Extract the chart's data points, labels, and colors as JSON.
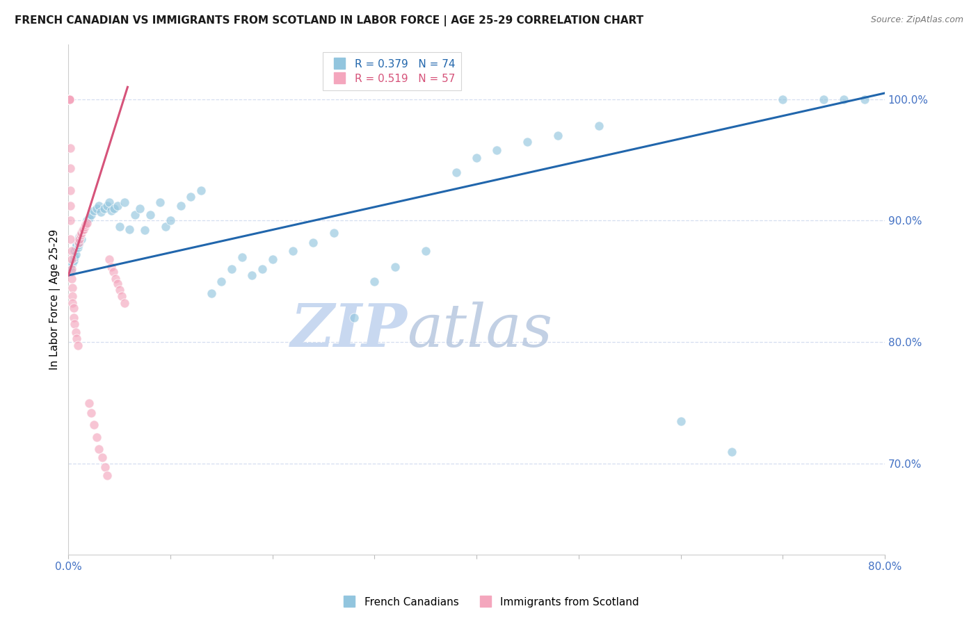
{
  "title": "FRENCH CANADIAN VS IMMIGRANTS FROM SCOTLAND IN LABOR FORCE | AGE 25-29 CORRELATION CHART",
  "source": "Source: ZipAtlas.com",
  "ylabel": "In Labor Force | Age 25-29",
  "y_tick_values": [
    0.7,
    0.8,
    0.9,
    1.0
  ],
  "x_min": 0.0,
  "x_max": 0.8,
  "y_min": 0.625,
  "y_max": 1.045,
  "blue_color": "#92C5DE",
  "pink_color": "#F4A6BD",
  "blue_line_color": "#2166AC",
  "pink_line_color": "#D6537A",
  "legend_blue_label": "French Canadians",
  "legend_pink_label": "Immigrants from Scotland",
  "R_blue": 0.379,
  "N_blue": 74,
  "R_pink": 0.519,
  "N_pink": 57,
  "blue_x": [
    0.002,
    0.003,
    0.004,
    0.005,
    0.006,
    0.006,
    0.007,
    0.007,
    0.008,
    0.009,
    0.009,
    0.01,
    0.01,
    0.011,
    0.011,
    0.012,
    0.013,
    0.013,
    0.014,
    0.015,
    0.016,
    0.017,
    0.018,
    0.02,
    0.022,
    0.025,
    0.028,
    0.03,
    0.032,
    0.035,
    0.038,
    0.04,
    0.042,
    0.045,
    0.048,
    0.05,
    0.055,
    0.06,
    0.065,
    0.07,
    0.075,
    0.08,
    0.09,
    0.095,
    0.1,
    0.11,
    0.12,
    0.13,
    0.14,
    0.15,
    0.16,
    0.17,
    0.18,
    0.19,
    0.2,
    0.22,
    0.24,
    0.26,
    0.28,
    0.3,
    0.32,
    0.35,
    0.38,
    0.4,
    0.42,
    0.45,
    0.48,
    0.52,
    0.6,
    0.65,
    0.7,
    0.74,
    0.76,
    0.78
  ],
  "blue_y": [
    0.862,
    0.858,
    0.865,
    0.867,
    0.87,
    0.875,
    0.872,
    0.878,
    0.88,
    0.883,
    0.878,
    0.885,
    0.88,
    0.887,
    0.882,
    0.888,
    0.89,
    0.885,
    0.892,
    0.893,
    0.895,
    0.897,
    0.9,
    0.902,
    0.905,
    0.908,
    0.91,
    0.912,
    0.907,
    0.91,
    0.912,
    0.915,
    0.908,
    0.91,
    0.912,
    0.895,
    0.915,
    0.893,
    0.905,
    0.91,
    0.892,
    0.905,
    0.915,
    0.895,
    0.9,
    0.912,
    0.92,
    0.925,
    0.84,
    0.85,
    0.86,
    0.87,
    0.855,
    0.86,
    0.868,
    0.875,
    0.882,
    0.89,
    0.82,
    0.85,
    0.862,
    0.875,
    0.94,
    0.952,
    0.958,
    0.965,
    0.97,
    0.978,
    0.735,
    0.71,
    1.0,
    1.0,
    1.0,
    1.0
  ],
  "pink_x": [
    0.001,
    0.001,
    0.001,
    0.001,
    0.001,
    0.001,
    0.001,
    0.001,
    0.001,
    0.001,
    0.001,
    0.001,
    0.001,
    0.002,
    0.002,
    0.002,
    0.002,
    0.002,
    0.002,
    0.003,
    0.003,
    0.003,
    0.003,
    0.004,
    0.004,
    0.004,
    0.005,
    0.005,
    0.006,
    0.007,
    0.008,
    0.009,
    0.01,
    0.011,
    0.012,
    0.013,
    0.014,
    0.015,
    0.016,
    0.017,
    0.018,
    0.02,
    0.022,
    0.025,
    0.028,
    0.03,
    0.033,
    0.036,
    0.038,
    0.04,
    0.042,
    0.044,
    0.046,
    0.048,
    0.05,
    0.052,
    0.055
  ],
  "pink_y": [
    1.0,
    1.0,
    1.0,
    1.0,
    1.0,
    1.0,
    1.0,
    1.0,
    1.0,
    1.0,
    1.0,
    1.0,
    1.0,
    0.96,
    0.943,
    0.925,
    0.912,
    0.9,
    0.885,
    0.875,
    0.868,
    0.86,
    0.852,
    0.845,
    0.838,
    0.832,
    0.828,
    0.82,
    0.815,
    0.808,
    0.803,
    0.797,
    0.882,
    0.885,
    0.888,
    0.89,
    0.892,
    0.893,
    0.895,
    0.897,
    0.898,
    0.75,
    0.742,
    0.732,
    0.722,
    0.712,
    0.705,
    0.697,
    0.69,
    0.868,
    0.862,
    0.858,
    0.852,
    0.848,
    0.843,
    0.838,
    0.832
  ],
  "watermark_zip": "ZIP",
  "watermark_atlas": "atlas",
  "watermark_color": "#C8D8F0",
  "grid_color": "#D5DEF0",
  "tick_color": "#4472C4",
  "x_tick_positions": [
    0.0,
    0.1,
    0.2,
    0.3,
    0.4,
    0.5,
    0.6,
    0.7,
    0.8
  ],
  "x_tick_labels": [
    "0.0%",
    "",
    "",
    "",
    "",
    "",
    "",
    "",
    "80.0%"
  ]
}
